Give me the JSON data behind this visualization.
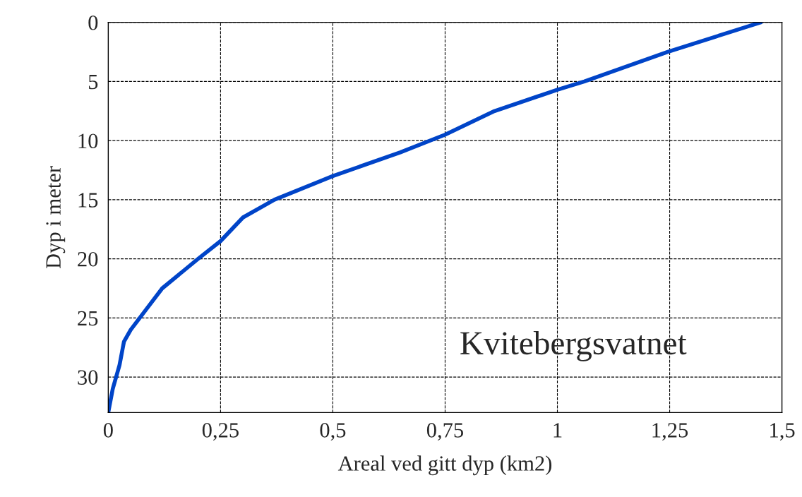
{
  "chart_data": {
    "type": "line",
    "xlabel": "Areal ved gitt dyp (km2)",
    "ylabel": "Dyp i meter",
    "annotations": [
      "Kvitebergsvatnet"
    ],
    "series": [
      {
        "color": "#0044c8",
        "x": [
          1.453,
          1.245,
          1.06,
          1.0,
          0.86,
          0.75,
          0.65,
          0.5,
          0.37,
          0.3,
          0.25,
          0.2,
          0.12,
          0.09,
          0.07,
          0.05,
          0.035,
          0.025,
          0.01,
          0.0
        ],
        "values": [
          0,
          2.5,
          5,
          5.7,
          7.5,
          9.5,
          11,
          13,
          15,
          16.5,
          18.5,
          20,
          22.5,
          24,
          25,
          26,
          27,
          29,
          31,
          33
        ]
      }
    ],
    "xlim": [
      0,
      1.5
    ],
    "xticks": [
      0,
      {
        "value": 0.25,
        "label": "0,25"
      },
      {
        "value": 0.5,
        "label": "0,5"
      },
      {
        "value": 0.75,
        "label": "0,75"
      },
      1,
      {
        "value": 1.25,
        "label": "1,25"
      },
      {
        "value": 1.5,
        "label": "1,5"
      }
    ],
    "ylim": [
      33,
      0
    ],
    "yticks": [
      0,
      5,
      10,
      15,
      20,
      25,
      30
    ],
    "grid": true,
    "marker": "none",
    "line_style": "solid",
    "legend": false
  }
}
